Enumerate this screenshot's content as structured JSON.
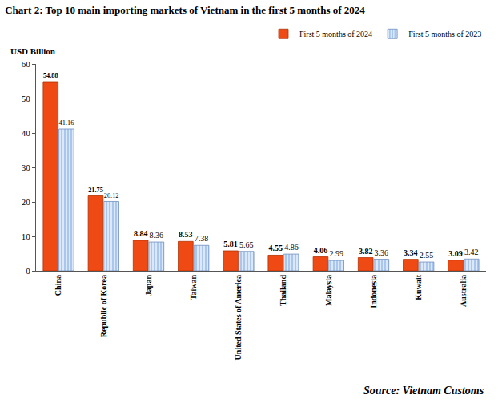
{
  "chart_data": {
    "type": "bar",
    "title": "Chart 2: Top 10 main importing markets of Vietnam in the first 5 months of 2024",
    "ylabel": "USD Billion",
    "annotations": [
      "Source: Vietnam Customs"
    ],
    "categories": [
      "China",
      "Republic of Korea",
      "Japan",
      "Taiwan",
      "United States of America",
      "Thailand",
      "Malaysia",
      "Indonesia",
      "Kuwait",
      "Australia"
    ],
    "series": [
      {
        "name": "First 5 months of 2024",
        "color": "#f04a14",
        "values": [
          54.88,
          21.75,
          8.84,
          8.53,
          5.81,
          4.55,
          4.06,
          3.82,
          3.34,
          3.09
        ]
      },
      {
        "name": "First 5 months of 2023",
        "color": "#a8c6ee",
        "values": [
          41.16,
          20.12,
          8.36,
          7.38,
          5.65,
          4.86,
          2.99,
          3.36,
          2.55,
          3.42
        ]
      }
    ],
    "ylim": [
      0,
      60
    ],
    "yticks": [
      0,
      10,
      20,
      30,
      40,
      50,
      60
    ],
    "grid": false,
    "legend": "top right",
    "data_labels": true
  }
}
